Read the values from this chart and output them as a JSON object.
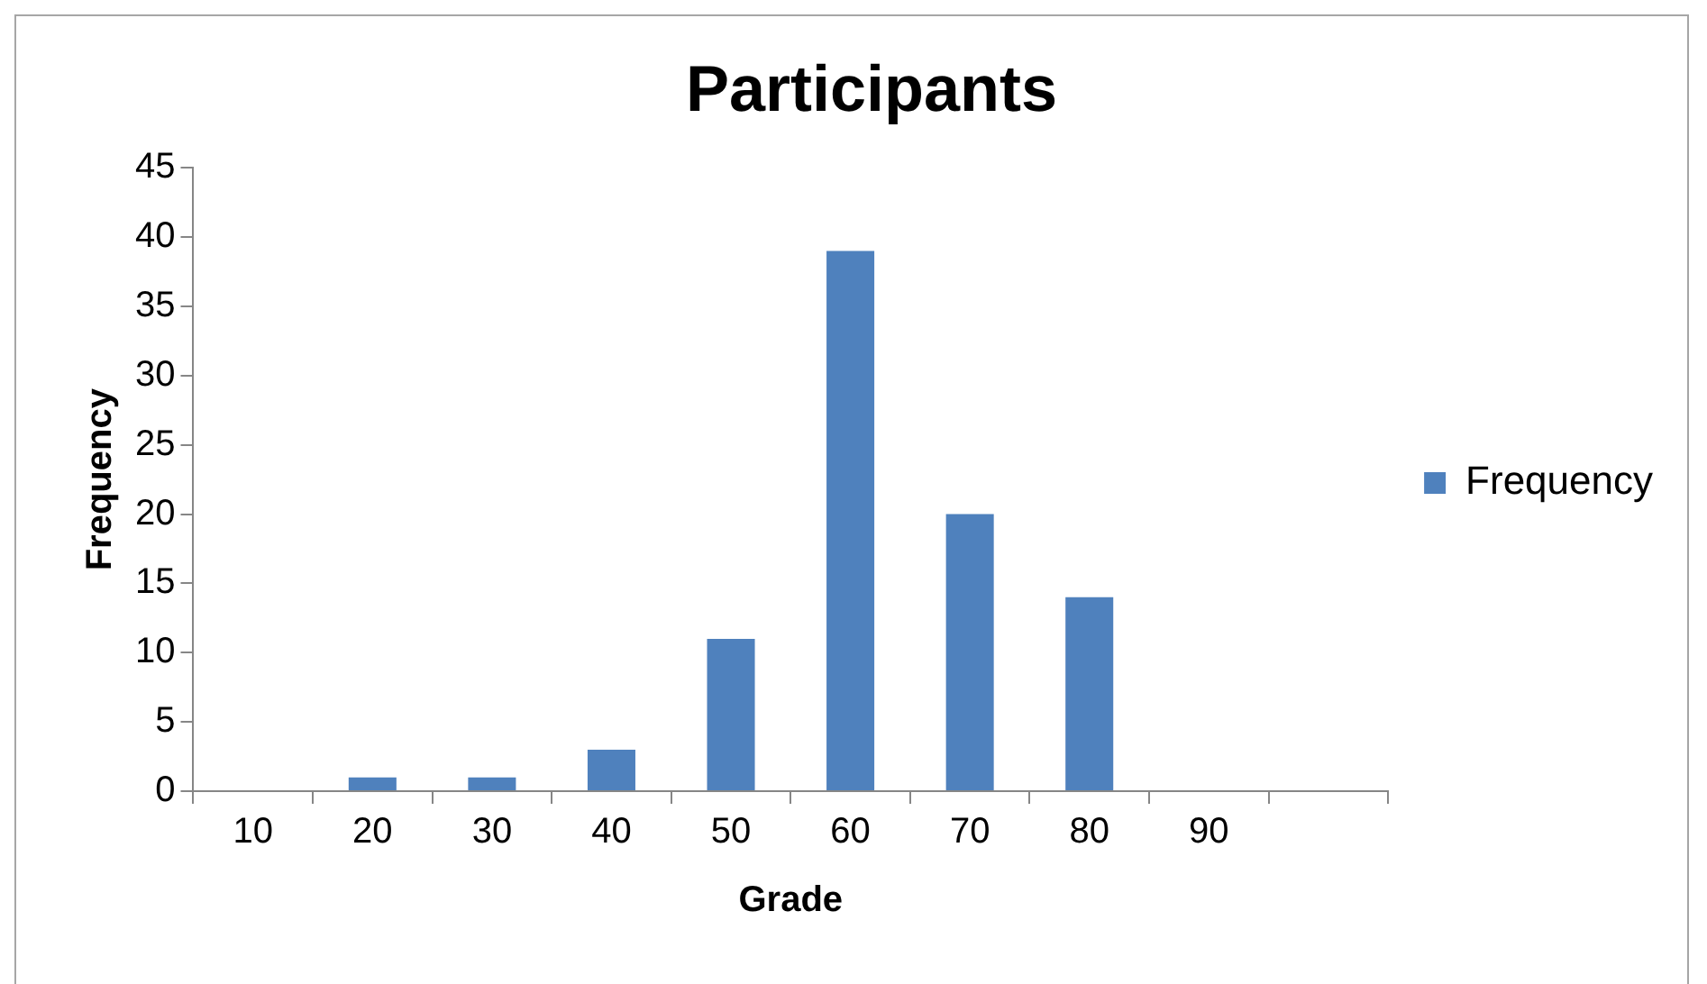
{
  "chart_data": {
    "type": "bar",
    "title": "Participants",
    "xlabel": "Grade",
    "ylabel": "Frequency",
    "categories": [
      "10",
      "20",
      "30",
      "40",
      "50",
      "60",
      "70",
      "80",
      "90",
      null
    ],
    "series": [
      {
        "name": "Frequency",
        "color": "#4f81bd",
        "values": [
          0,
          1,
          1,
          3,
          11,
          39,
          20,
          14,
          0,
          0
        ]
      }
    ],
    "ylim": [
      0,
      45
    ],
    "yticks": [
      0,
      5,
      10,
      15,
      20,
      25,
      30,
      35,
      40,
      45
    ],
    "grid": false,
    "legend": "right"
  }
}
